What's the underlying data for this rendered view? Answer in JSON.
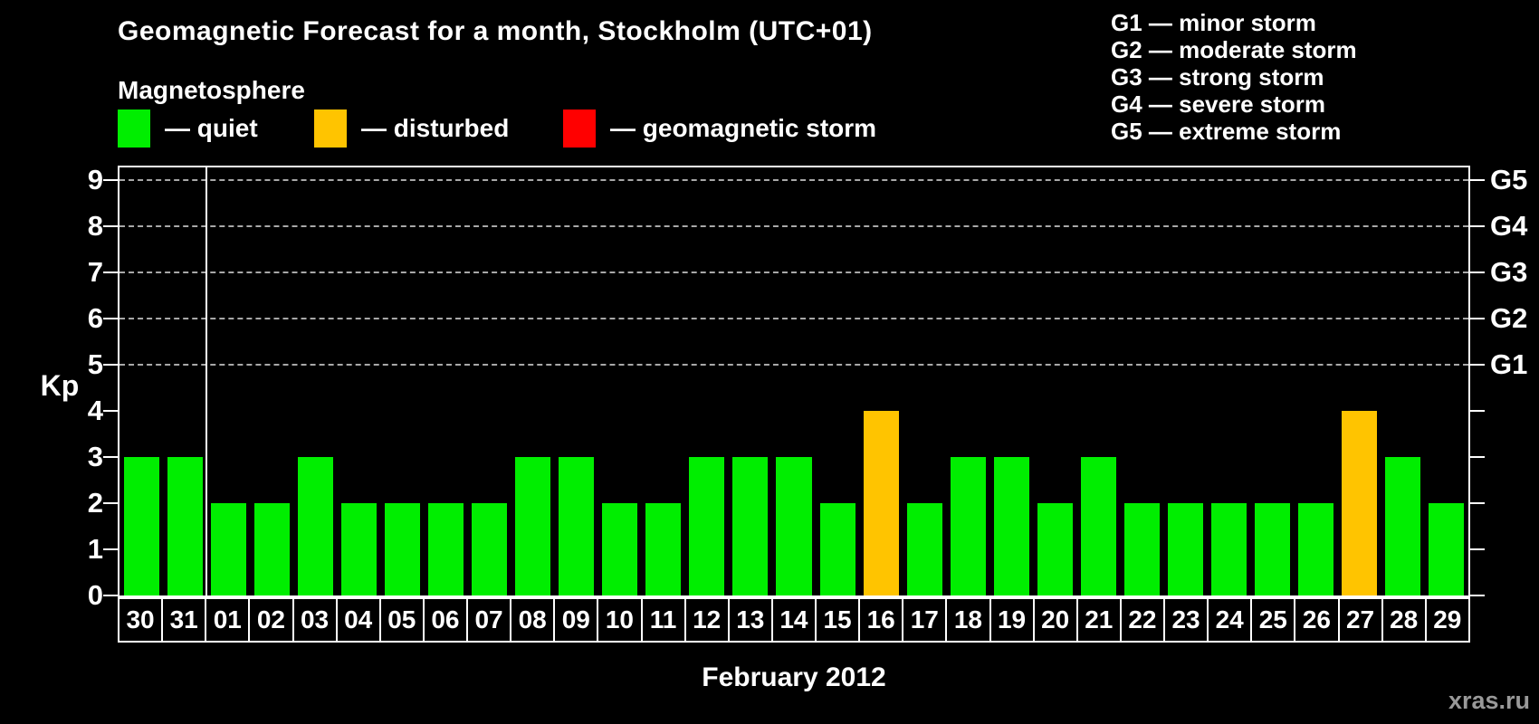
{
  "title": "Geomagnetic Forecast for a month, Stockholm (UTC+01)",
  "legend": {
    "heading": "Magnetosphere",
    "items": [
      {
        "status": "quiet",
        "label": "— quiet"
      },
      {
        "status": "disturbed",
        "label": "— disturbed"
      },
      {
        "status": "storm",
        "label": "— geomagnetic storm"
      }
    ]
  },
  "g_scale_legend": [
    "G1 — minor storm",
    "G2 — moderate storm",
    "G3 — strong storm",
    "G4 — severe storm",
    "G5 — extreme storm"
  ],
  "colors": {
    "quiet": "#00ee00",
    "disturbed": "#ffc400",
    "storm": "#ff0000",
    "grid": "#a8a8a8",
    "axis": "#ffffff",
    "watermark": "#999999"
  },
  "axes": {
    "y_left_label": "Kp",
    "y_ticks": [
      0,
      1,
      2,
      3,
      4,
      5,
      6,
      7,
      8,
      9
    ],
    "g_levels": [
      {
        "kp": 5,
        "label": "G1"
      },
      {
        "kp": 6,
        "label": "G2"
      },
      {
        "kp": 7,
        "label": "G3"
      },
      {
        "kp": 8,
        "label": "G4"
      },
      {
        "kp": 9,
        "label": "G5"
      }
    ],
    "x_label": "February 2012"
  },
  "watermark": "xras.ru",
  "chart_data": {
    "type": "bar",
    "title": "Geomagnetic Forecast for a month, Stockholm (UTC+01)",
    "xlabel": "February 2012",
    "ylabel": "Kp",
    "ylim": [
      0,
      9
    ],
    "grid": "dashed horizontal lines at Kp 5-9 (G1-G5)",
    "legend_position": "top",
    "categories": [
      "30",
      "31",
      "01",
      "02",
      "03",
      "04",
      "05",
      "06",
      "07",
      "08",
      "09",
      "10",
      "11",
      "12",
      "13",
      "14",
      "15",
      "16",
      "17",
      "18",
      "19",
      "20",
      "21",
      "22",
      "23",
      "24",
      "25",
      "26",
      "27",
      "28",
      "29"
    ],
    "values": [
      3,
      3,
      2,
      2,
      3,
      2,
      2,
      2,
      2,
      3,
      3,
      2,
      2,
      3,
      3,
      3,
      2,
      4,
      2,
      3,
      3,
      2,
      3,
      2,
      2,
      2,
      2,
      2,
      4,
      3,
      2
    ],
    "statuses": [
      "quiet",
      "quiet",
      "quiet",
      "quiet",
      "quiet",
      "quiet",
      "quiet",
      "quiet",
      "quiet",
      "quiet",
      "quiet",
      "quiet",
      "quiet",
      "quiet",
      "quiet",
      "quiet",
      "quiet",
      "disturbed",
      "quiet",
      "quiet",
      "quiet",
      "quiet",
      "quiet",
      "quiet",
      "quiet",
      "quiet",
      "quiet",
      "quiet",
      "disturbed",
      "quiet",
      "quiet"
    ],
    "month_separator_after_index": 1
  }
}
